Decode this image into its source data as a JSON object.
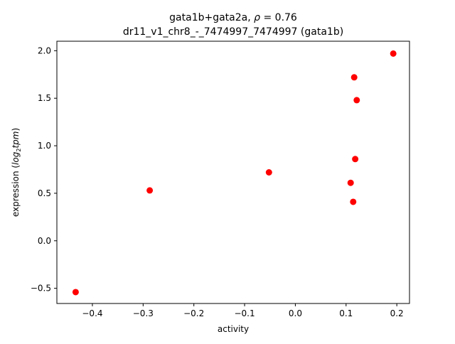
{
  "chart_data": {
    "type": "scatter",
    "title_line1_prefix": "gata1b+gata2a, ",
    "title_rho_symbol": "ρ",
    "title_rho_value": " = 0.76",
    "title_line2": "dr11_v1_chr8_-_7474997_7474997 (gata1b)",
    "xlabel": "activity",
    "ylabel_prefix": "expression (",
    "ylabel_math": "log",
    "ylabel_sub": "2",
    "ylabel_math2": "tpm",
    "ylabel_suffix": ")",
    "xlim": [
      -0.47,
      0.225
    ],
    "ylim": [
      -0.66,
      2.1
    ],
    "xticks": [
      -0.4,
      -0.3,
      -0.2,
      -0.1,
      0.0,
      0.1,
      0.2
    ],
    "xtick_labels": [
      "−0.4",
      "−0.3",
      "−0.2",
      "−0.1",
      "0.0",
      "0.1",
      "0.2"
    ],
    "yticks": [
      -0.5,
      0.0,
      0.5,
      1.0,
      1.5,
      2.0
    ],
    "ytick_labels": [
      "−0.5",
      "0.0",
      "0.5",
      "1.0",
      "1.5",
      "2.0"
    ],
    "marker_color": "#ff0000",
    "grid": false,
    "points": [
      {
        "x": -0.433,
        "y": -0.54
      },
      {
        "x": -0.287,
        "y": 0.53
      },
      {
        "x": -0.052,
        "y": 0.72
      },
      {
        "x": 0.109,
        "y": 0.61
      },
      {
        "x": 0.114,
        "y": 0.41
      },
      {
        "x": 0.116,
        "y": 1.72
      },
      {
        "x": 0.118,
        "y": 0.86
      },
      {
        "x": 0.121,
        "y": 1.48
      },
      {
        "x": 0.193,
        "y": 1.97
      }
    ]
  }
}
